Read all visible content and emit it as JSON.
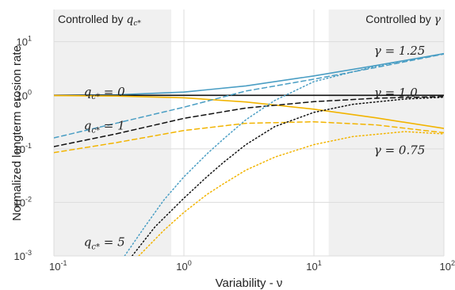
{
  "chart_data": {
    "type": "line",
    "xlabel": "Variability - ν",
    "ylabel": "Normalized longterm erosion rate",
    "x_scale": "log",
    "y_scale": "log",
    "xlim": [
      0.1,
      100
    ],
    "ylim": [
      0.001,
      40
    ],
    "grid": true,
    "x_ticks": [
      {
        "value": 0.1,
        "base": "10",
        "exp": "-1"
      },
      {
        "value": 1,
        "base": "10",
        "exp": "0"
      },
      {
        "value": 10,
        "base": "10",
        "exp": "1"
      },
      {
        "value": 100,
        "base": "10",
        "exp": "2"
      }
    ],
    "y_ticks": [
      {
        "value": 0.001,
        "base": "10",
        "exp": "-3"
      },
      {
        "value": 0.01,
        "base": "10",
        "exp": "-2"
      },
      {
        "value": 0.1,
        "base": "10",
        "exp": "-1"
      },
      {
        "value": 1,
        "base": "10",
        "exp": "0"
      },
      {
        "value": 10,
        "base": "10",
        "exp": "1"
      }
    ],
    "shaded_regions": [
      {
        "x": [
          0.1,
          0.8
        ],
        "label": "Controlled by q_c*",
        "label_text": "Controlled by ",
        "label_math": "q",
        "label_sub": "c*"
      },
      {
        "x": [
          13,
          100
        ],
        "label": "Controlled by γ",
        "label_text": "Controlled by ",
        "label_math": "γ",
        "label_sub": ""
      }
    ],
    "colors": {
      "gamma_1.25": "#4a9ec4",
      "gamma_1.0": "#111111",
      "gamma_0.75": "#f2b400",
      "shade": "#f0f0f0",
      "grid": "#dcdcdc"
    },
    "series": [
      {
        "color_key": "gamma_1.25",
        "style": "solid",
        "x": [
          0.1,
          0.3,
          1,
          3,
          10,
          30,
          100
        ],
        "y": [
          1.0,
          1.02,
          1.15,
          1.5,
          2.3,
          3.6,
          6.0
        ]
      },
      {
        "color_key": "gamma_1.0",
        "style": "solid",
        "x": [
          0.1,
          100
        ],
        "y": [
          1.0,
          1.0
        ]
      },
      {
        "color_key": "gamma_0.75",
        "style": "solid",
        "x": [
          0.1,
          0.3,
          1,
          3,
          10,
          30,
          100
        ],
        "y": [
          0.99,
          0.97,
          0.9,
          0.75,
          0.55,
          0.38,
          0.24
        ]
      },
      {
        "color_key": "gamma_1.25",
        "style": "dashed",
        "x": [
          0.1,
          0.3,
          1,
          3,
          10,
          30,
          100
        ],
        "y": [
          0.16,
          0.3,
          0.6,
          1.2,
          2.0,
          3.3,
          5.9
        ]
      },
      {
        "color_key": "gamma_1.0",
        "style": "dashed",
        "x": [
          0.1,
          0.3,
          1,
          3,
          10,
          30,
          100
        ],
        "y": [
          0.11,
          0.19,
          0.37,
          0.58,
          0.76,
          0.88,
          0.95
        ]
      },
      {
        "color_key": "gamma_0.75",
        "style": "dashed",
        "x": [
          0.1,
          0.3,
          1,
          3,
          10,
          30,
          100
        ],
        "y": [
          0.085,
          0.13,
          0.22,
          0.3,
          0.32,
          0.28,
          0.2
        ]
      },
      {
        "color_key": "gamma_1.25",
        "style": "dashdot",
        "x": [
          0.35,
          0.5,
          0.7,
          1,
          1.5,
          2,
          3,
          5,
          10,
          30,
          100
        ],
        "y": [
          0.001,
          0.0035,
          0.011,
          0.03,
          0.08,
          0.15,
          0.35,
          0.8,
          1.8,
          3.5,
          6.0
        ]
      },
      {
        "color_key": "gamma_1.0",
        "style": "dashdot",
        "x": [
          0.4,
          0.6,
          1,
          1.5,
          2,
          3,
          5,
          10,
          20,
          50,
          100
        ],
        "y": [
          0.001,
          0.0035,
          0.012,
          0.03,
          0.055,
          0.12,
          0.26,
          0.48,
          0.68,
          0.85,
          0.92
        ]
      },
      {
        "color_key": "gamma_0.75",
        "style": "dashdot",
        "x": [
          0.45,
          0.7,
          1,
          1.5,
          2,
          3,
          5,
          10,
          20,
          50,
          100
        ],
        "y": [
          0.001,
          0.003,
          0.0065,
          0.014,
          0.022,
          0.04,
          0.07,
          0.12,
          0.17,
          0.21,
          0.19
        ]
      }
    ],
    "annotations": [
      {
        "x": 0.17,
        "y": 1.15,
        "math": "q",
        "sub": "c*",
        "rhs": " = 0"
      },
      {
        "x": 0.17,
        "y": 0.27,
        "math": "q",
        "sub": "c*",
        "rhs": " = 1"
      },
      {
        "x": 0.17,
        "y": 0.0018,
        "math": "q",
        "sub": "c*",
        "rhs": " = 5"
      },
      {
        "x": 29,
        "y": 6.8,
        "math": "γ",
        "sub": "",
        "rhs": " = 1.25"
      },
      {
        "x": 29,
        "y": 1.12,
        "math": "γ",
        "sub": "",
        "rhs": " = 1.0"
      },
      {
        "x": 29,
        "y": 0.095,
        "math": "γ",
        "sub": "",
        "rhs": " = 0.75"
      }
    ]
  }
}
